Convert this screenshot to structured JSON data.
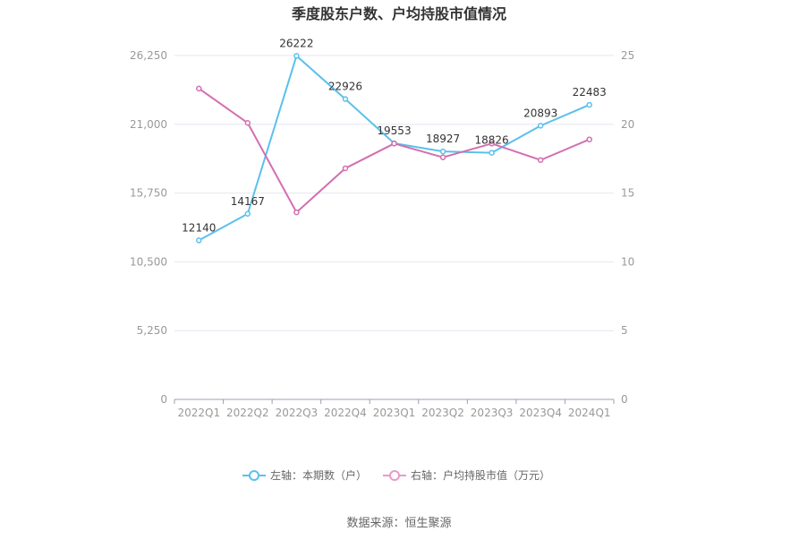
{
  "chart_data": {
    "type": "line",
    "title": "季度股东户数、户均持股市值情况",
    "categories": [
      "2022Q1",
      "2022Q2",
      "2022Q3",
      "2022Q4",
      "2023Q1",
      "2023Q2",
      "2023Q3",
      "2023Q4",
      "2024Q1"
    ],
    "y_left": {
      "ticks": [
        "0",
        "5,250",
        "10,500",
        "15,750",
        "21,000",
        "26,250"
      ],
      "range": [
        0,
        26250
      ]
    },
    "y_right": {
      "ticks": [
        "0",
        "5",
        "10",
        "15",
        "20",
        "25"
      ],
      "range": [
        0,
        25
      ]
    },
    "series": [
      {
        "name": "左轴：本期数（户）",
        "axis": "left",
        "color": "#5bc0eb",
        "values": [
          12140,
          14167,
          26222,
          22926,
          19553,
          18927,
          18826,
          20893,
          22483
        ],
        "labels": [
          "12140",
          "14167",
          "26222",
          "22926",
          "19553",
          "18927",
          "18826",
          "20893",
          "22483"
        ]
      },
      {
        "name": "右轴：户均持股市值（万元）",
        "axis": "right",
        "color": "#d36fb0",
        "values": [
          22.6,
          20.1,
          13.6,
          16.8,
          18.6,
          17.6,
          18.6,
          17.4,
          18.9
        ]
      }
    ],
    "grid": true,
    "legend_position": "bottom"
  },
  "legend": {
    "left_label": "左轴：本期数（户）",
    "right_label": "右轴：户均持股市值（万元）"
  },
  "source": "数据来源：恒生聚源"
}
